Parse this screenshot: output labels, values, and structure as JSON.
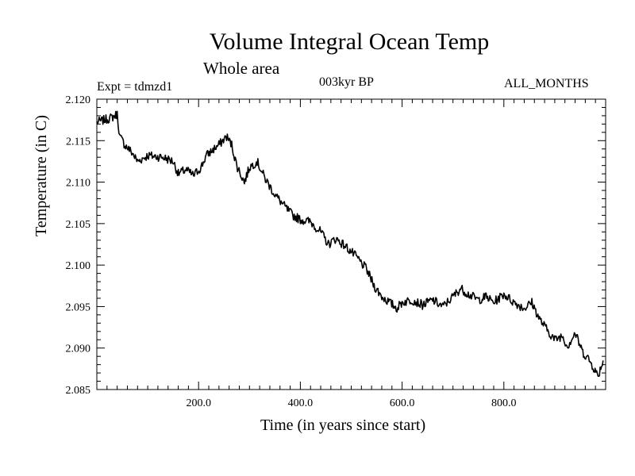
{
  "chart_data": {
    "type": "line",
    "title": "Volume Integral Ocean Temp",
    "subtitle": "Whole area",
    "experiment": "Expt = tdmzd1",
    "period": "003kyr BP",
    "months": "ALL_MONTHS",
    "xlabel": "Time (in years since start)",
    "ylabel": "Temperature (in C)",
    "xlim": [
      0,
      1000
    ],
    "ylim": [
      2.085,
      2.12
    ],
    "xticks": [
      200,
      400,
      600,
      800
    ],
    "xtick_labels": [
      "200.0",
      "400.0",
      "600.0",
      "800.0"
    ],
    "yticks": [
      2.085,
      2.09,
      2.095,
      2.1,
      2.105,
      2.11,
      2.115,
      2.12
    ],
    "ytick_labels": [
      "2.085",
      "2.090",
      "2.095",
      "2.100",
      "2.105",
      "2.110",
      "2.115",
      "2.120"
    ],
    "grid": false,
    "series": [
      {
        "name": "Volume Integral Ocean Temp",
        "x": [
          0,
          15,
          30,
          40,
          45,
          55,
          70,
          80,
          100,
          130,
          150,
          160,
          175,
          190,
          205,
          215,
          240,
          255,
          265,
          275,
          290,
          300,
          315,
          330,
          350,
          370,
          385,
          400,
          420,
          440,
          455,
          470,
          490,
          510,
          530,
          545,
          560,
          575,
          590,
          600,
          620,
          640,
          660,
          680,
          700,
          715,
          730,
          750,
          765,
          780,
          800,
          820,
          840,
          855,
          870,
          885,
          900,
          915,
          925,
          940,
          955,
          965,
          975,
          985,
          995
        ],
        "y": [
          2.1172,
          2.1175,
          2.1178,
          2.1182,
          2.1155,
          2.1145,
          2.1135,
          2.1125,
          2.1132,
          2.113,
          2.1125,
          2.111,
          2.1115,
          2.1108,
          2.1118,
          2.1132,
          2.1145,
          2.1155,
          2.1145,
          2.112,
          2.11,
          2.1118,
          2.1125,
          2.1105,
          2.1085,
          2.107,
          2.106,
          2.1055,
          2.1052,
          2.104,
          2.1025,
          2.1032,
          2.1022,
          2.101,
          2.0995,
          2.0975,
          2.0962,
          2.0955,
          2.0948,
          2.0955,
          2.0958,
          2.0952,
          2.0958,
          2.095,
          2.0962,
          2.0972,
          2.0965,
          2.0958,
          2.0962,
          2.0955,
          2.0965,
          2.0955,
          2.0948,
          2.0955,
          2.0935,
          2.0922,
          2.091,
          2.0915,
          2.0902,
          2.0918,
          2.0895,
          2.0888,
          2.0878,
          2.0866,
          2.0885
        ]
      }
    ]
  }
}
